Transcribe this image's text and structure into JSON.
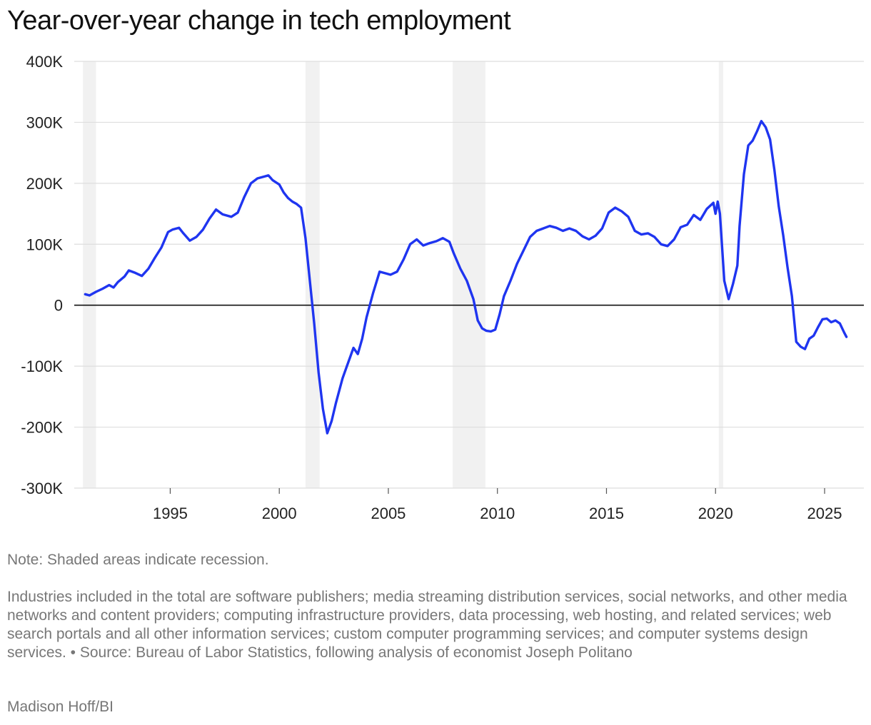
{
  "title": "Year-over-year change in tech employment",
  "note": "Note: Shaded areas indicate recession.",
  "description": "Industries included in the total are software publishers; media streaming distribution services, social networks, and other media networks and content providers; computing infrastructure providers, data processing, web hosting, and related services; web search portals and all other information services; custom computer programming services; and computer systems design services. • Source: Bureau of Labor Statistics, following analysis of economist Joseph Politano",
  "credit": "Madison Hoff/BI",
  "chart_data": {
    "type": "line",
    "title": "Year-over-year change in tech employment",
    "xlabel": "",
    "ylabel": "",
    "xlim": [
      1990.6,
      2026.8
    ],
    "ylim": [
      -300000,
      400000
    ],
    "grid": true,
    "legend": "none",
    "line_color": "#1f35f0",
    "recession_color": "#f1f1f1",
    "x_ticks": [
      1995,
      2000,
      2005,
      2010,
      2015,
      2020,
      2025
    ],
    "y_ticks": [
      -300000,
      -200000,
      -100000,
      0,
      100000,
      200000,
      300000,
      400000
    ],
    "y_tick_labels": [
      "-300K",
      "-200K",
      "-100K",
      "0",
      "100K",
      "200K",
      "300K",
      "400K"
    ],
    "recessions": [
      [
        1991.0,
        1991.6
      ],
      [
        2001.2,
        2001.85
      ],
      [
        2007.95,
        2009.45
      ],
      [
        2020.15,
        2020.35
      ]
    ],
    "series": [
      {
        "name": "",
        "x": [
          1991.1,
          1991.3,
          1991.6,
          1991.9,
          1992.2,
          1992.4,
          1992.6,
          1992.9,
          1993.1,
          1993.4,
          1993.7,
          1994.0,
          1994.3,
          1994.6,
          1994.9,
          1995.1,
          1995.4,
          1995.6,
          1995.9,
          1996.2,
          1996.5,
          1996.8,
          1997.1,
          1997.4,
          1997.8,
          1998.1,
          1998.4,
          1998.7,
          1999.0,
          1999.3,
          1999.5,
          1999.7,
          2000.0,
          2000.2,
          2000.4,
          2000.6,
          2000.8,
          2001.0,
          2001.2,
          2001.4,
          2001.6,
          2001.8,
          2002.0,
          2002.2,
          2002.4,
          2002.6,
          2002.9,
          2003.1,
          2003.4,
          2003.6,
          2003.8,
          2004.0,
          2004.3,
          2004.6,
          2004.9,
          2005.1,
          2005.4,
          2005.7,
          2006.0,
          2006.3,
          2006.6,
          2006.9,
          2007.2,
          2007.5,
          2007.8,
          2008.0,
          2008.3,
          2008.6,
          2008.9,
          2009.1,
          2009.3,
          2009.5,
          2009.7,
          2009.9,
          2010.1,
          2010.3,
          2010.6,
          2010.9,
          2011.2,
          2011.5,
          2011.8,
          2012.1,
          2012.4,
          2012.7,
          2013.0,
          2013.3,
          2013.6,
          2013.9,
          2014.2,
          2014.5,
          2014.8,
          2015.1,
          2015.4,
          2015.7,
          2016.0,
          2016.3,
          2016.6,
          2016.9,
          2017.2,
          2017.5,
          2017.8,
          2018.1,
          2018.4,
          2018.7,
          2019.0,
          2019.3,
          2019.6,
          2019.9,
          2020.0,
          2020.1,
          2020.2,
          2020.4,
          2020.6,
          2020.8,
          2021.0,
          2021.1,
          2021.3,
          2021.5,
          2021.7,
          2021.9,
          2022.1,
          2022.3,
          2022.5,
          2022.7,
          2022.9,
          2023.1,
          2023.3,
          2023.5,
          2023.7,
          2023.9,
          2024.1,
          2024.3,
          2024.5,
          2024.7,
          2024.9,
          2025.1,
          2025.3,
          2025.5,
          2025.7,
          2025.9,
          2026.0
        ],
        "y": [
          18000,
          16000,
          22000,
          27000,
          33000,
          29000,
          38000,
          47000,
          57000,
          53000,
          48000,
          60000,
          78000,
          95000,
          120000,
          124000,
          127000,
          118000,
          106000,
          112000,
          124000,
          142000,
          157000,
          149000,
          145000,
          152000,
          178000,
          200000,
          208000,
          211000,
          213000,
          205000,
          198000,
          185000,
          176000,
          170000,
          166000,
          160000,
          110000,
          40000,
          -30000,
          -110000,
          -170000,
          -210000,
          -190000,
          -160000,
          -120000,
          -100000,
          -70000,
          -80000,
          -55000,
          -20000,
          20000,
          55000,
          52000,
          50000,
          55000,
          75000,
          100000,
          108000,
          98000,
          102000,
          105000,
          110000,
          104000,
          85000,
          60000,
          40000,
          10000,
          -25000,
          -38000,
          -42000,
          -43000,
          -40000,
          -15000,
          15000,
          40000,
          68000,
          90000,
          112000,
          122000,
          126000,
          130000,
          127000,
          122000,
          126000,
          122000,
          113000,
          108000,
          114000,
          126000,
          152000,
          160000,
          154000,
          145000,
          122000,
          116000,
          118000,
          112000,
          100000,
          97000,
          108000,
          128000,
          132000,
          148000,
          140000,
          158000,
          168000,
          150000,
          170000,
          150000,
          40000,
          10000,
          35000,
          65000,
          130000,
          215000,
          262000,
          270000,
          285000,
          302000,
          292000,
          272000,
          222000,
          162000,
          115000,
          62000,
          15000,
          -60000,
          -68000,
          -72000,
          -55000,
          -50000,
          -36000,
          -23000,
          -22000,
          -28000,
          -25000,
          -30000,
          -45000,
          -52000
        ]
      }
    ]
  }
}
